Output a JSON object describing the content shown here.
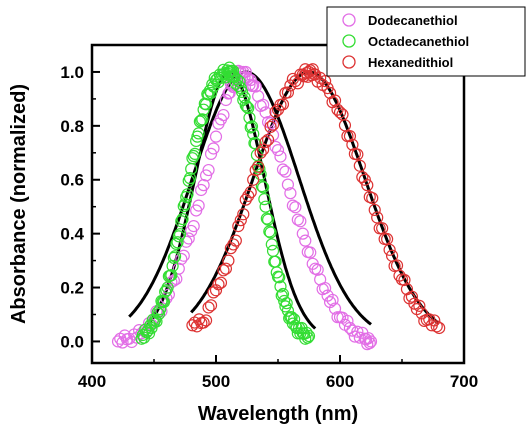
{
  "chart_data": {
    "type": "scatter",
    "title": "",
    "xlabel": "Wavelength (nm)",
    "ylabel": "Absorbance (normalized)",
    "xlim": [
      400,
      700
    ],
    "ylim": [
      -0.08,
      1.1
    ],
    "xticks": [
      400,
      500,
      600,
      700
    ],
    "yticks": [
      0.0,
      0.2,
      0.4,
      0.6,
      0.8,
      1.0
    ],
    "xtick_labels": [
      "400",
      "500",
      "600",
      "700"
    ],
    "ytick_labels": [
      "0.0",
      "0.2",
      "0.4",
      "0.6",
      "0.8",
      "1.0"
    ],
    "grid": false,
    "legend_position": "top-right",
    "series": [
      {
        "name": "Dodecanethiol",
        "marker": "circle-open",
        "color": "#e26ee6",
        "x": [
          421,
          430,
          440,
          450,
          460,
          470,
          480,
          490,
          500,
          510,
          515,
          520,
          525,
          530,
          540,
          550,
          560,
          570,
          580,
          590,
          600,
          610,
          620,
          625
        ],
        "y": [
          0.0,
          0.01,
          0.03,
          0.08,
          0.16,
          0.27,
          0.41,
          0.58,
          0.76,
          0.92,
          0.97,
          1.0,
          0.98,
          0.95,
          0.85,
          0.71,
          0.55,
          0.4,
          0.27,
          0.17,
          0.09,
          0.04,
          0.01,
          0.0
        ]
      },
      {
        "name": "Octadecanethiol",
        "marker": "circle-open",
        "color": "#33dd33",
        "x": [
          440,
          445,
          450,
          455,
          460,
          465,
          470,
          475,
          480,
          485,
          490,
          495,
          500,
          505,
          510,
          512,
          515,
          520,
          525,
          530,
          535,
          540,
          545,
          550,
          555,
          560,
          565,
          570,
          575
        ],
        "y": [
          0.01,
          0.04,
          0.07,
          0.12,
          0.19,
          0.28,
          0.39,
          0.51,
          0.64,
          0.76,
          0.86,
          0.93,
          0.97,
          0.99,
          1.0,
          1.0,
          0.98,
          0.94,
          0.87,
          0.77,
          0.64,
          0.5,
          0.36,
          0.24,
          0.15,
          0.09,
          0.05,
          0.03,
          0.02
        ]
      },
      {
        "name": "Hexanedithiol",
        "marker": "circle-open",
        "color": "#dd3333",
        "x": [
          481,
          490,
          500,
          510,
          520,
          530,
          540,
          550,
          560,
          570,
          575,
          580,
          590,
          600,
          610,
          620,
          630,
          640,
          650,
          660,
          670,
          680
        ],
        "y": [
          0.06,
          0.07,
          0.19,
          0.3,
          0.45,
          0.6,
          0.74,
          0.86,
          0.95,
          0.99,
          1.0,
          0.99,
          0.94,
          0.85,
          0.73,
          0.6,
          0.46,
          0.34,
          0.23,
          0.14,
          0.08,
          0.05
        ]
      }
    ],
    "fits": [
      {
        "color": "#000000",
        "x_range": [
          430,
          625
        ],
        "center": 524,
        "sigma": 43
      },
      {
        "color": "#000000",
        "x_range": [
          445,
          580
        ],
        "center": 511,
        "sigma": 28
      },
      {
        "color": "#000000",
        "x_range": [
          480,
          680
        ],
        "center": 575,
        "sigma": 45
      }
    ]
  }
}
